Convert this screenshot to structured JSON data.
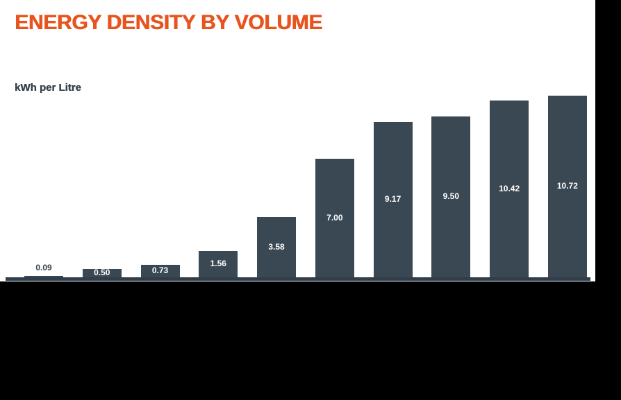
{
  "header": {
    "title": "ENERGY DENSITY BY VOLUME"
  },
  "chart_data": {
    "type": "bar",
    "title": "ENERGY DENSITY BY VOLUME",
    "subtitle": "kWh per Litre",
    "xlabel": "",
    "ylabel": "kWh per Litre",
    "values": [
      0.09,
      0.5,
      0.73,
      1.56,
      3.58,
      7.0,
      9.17,
      9.5,
      10.42,
      10.72
    ],
    "data_labels": [
      "0.09",
      "0.50",
      "0.73",
      "1.56",
      "3.58",
      "7.00",
      "9.17",
      "9.50",
      "10.42",
      "10.72"
    ],
    "bar_count": 10,
    "ylim": [
      0,
      10.72
    ],
    "grid": false,
    "legend": false,
    "data_labels_position": "inside-center, outside-above for smallest bar"
  },
  "colors": {
    "accent": "#E8541E",
    "bar": "#3A4853",
    "axis": "#2F3E4A",
    "panel": "#FFFFFF",
    "background_outer": "#000000",
    "label_on_bar": "#FFFFFF",
    "label_dark": "#33424E"
  }
}
